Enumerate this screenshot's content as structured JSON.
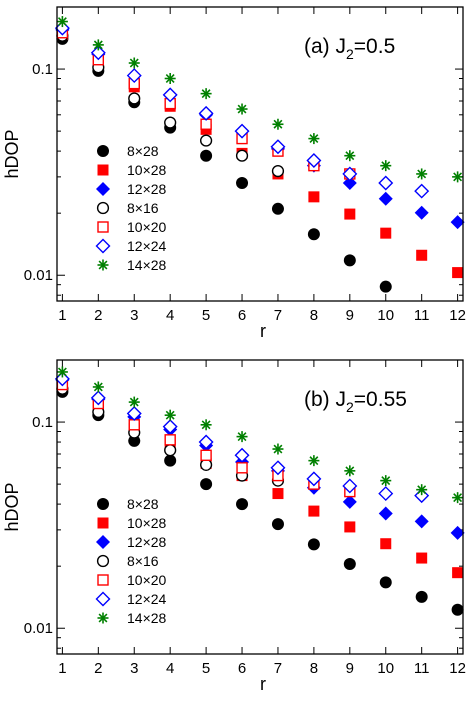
{
  "chart_data": [
    {
      "type": "scatter",
      "title_prefix": "(a) J",
      "title_sub": "2",
      "title_suffix": "=0.5",
      "xlabel": "r",
      "ylabel": "hDOP",
      "yscale": "log",
      "xlim": [
        0.85,
        12.15
      ],
      "ylim": [
        0.0075,
        0.2
      ],
      "xticks": [
        "1",
        "2",
        "3",
        "4",
        "5",
        "6",
        "7",
        "8",
        "9",
        "10",
        "11",
        "12"
      ],
      "yticks": [
        {
          "value": 0.01,
          "label": "0.01"
        },
        {
          "value": 0.1,
          "label": "0.1"
        }
      ],
      "legend_position": "left",
      "series": [
        {
          "name": "8×28",
          "marker": "circle-filled",
          "color": "#000000",
          "x": [
            1,
            2,
            3,
            4,
            5,
            6,
            7,
            8,
            9,
            10
          ],
          "y": [
            0.14,
            0.098,
            0.069,
            0.052,
            0.038,
            0.028,
            0.021,
            0.0158,
            0.0118,
            0.0088
          ]
        },
        {
          "name": "10×28",
          "marker": "square-filled",
          "color": "#ff0000",
          "x": [
            1,
            2,
            3,
            4,
            5,
            6,
            7,
            8,
            9,
            10,
            11,
            12
          ],
          "y": [
            0.147,
            0.108,
            0.082,
            0.066,
            0.051,
            0.039,
            0.031,
            0.024,
            0.0198,
            0.016,
            0.0125,
            0.0103
          ]
        },
        {
          "name": "12×28",
          "marker": "diamond-filled",
          "color": "#0000ff",
          "x": [
            1,
            2,
            3,
            4,
            5,
            6,
            7,
            8,
            9,
            10,
            11,
            12
          ],
          "y": [
            0.155,
            0.118,
            0.093,
            0.075,
            0.06,
            0.05,
            0.041,
            0.034,
            0.028,
            0.0235,
            0.0201,
            0.0181
          ]
        },
        {
          "name": "8×16",
          "marker": "circle-open",
          "color": "#000000",
          "x": [
            1,
            2,
            3,
            4,
            5,
            6,
            7
          ],
          "y": [
            0.145,
            0.102,
            0.072,
            0.055,
            0.045,
            0.038,
            0.032
          ]
        },
        {
          "name": "10×20",
          "marker": "square-open",
          "color": "#ff0000",
          "x": [
            1,
            2,
            3,
            4,
            5,
            6,
            7,
            8,
            9
          ],
          "y": [
            0.15,
            0.111,
            0.085,
            0.068,
            0.054,
            0.046,
            0.04,
            0.034,
            0.031
          ]
        },
        {
          "name": "12×24",
          "marker": "diamond-open",
          "color": "#0000ff",
          "x": [
            1,
            2,
            3,
            4,
            5,
            6,
            7,
            8,
            9,
            10,
            11
          ],
          "y": [
            0.158,
            0.12,
            0.093,
            0.075,
            0.061,
            0.05,
            0.042,
            0.036,
            0.031,
            0.028,
            0.0256
          ]
        },
        {
          "name": "14×28",
          "marker": "star",
          "color": "#008000",
          "x": [
            1,
            2,
            3,
            4,
            5,
            6,
            7,
            8,
            9,
            10,
            11,
            12
          ],
          "y": [
            0.17,
            0.131,
            0.107,
            0.09,
            0.076,
            0.064,
            0.054,
            0.046,
            0.038,
            0.034,
            0.031,
            0.03
          ]
        }
      ]
    },
    {
      "type": "scatter",
      "title_prefix": "(b) J",
      "title_sub": "2",
      "title_suffix": "=0.55",
      "xlabel": "r",
      "ylabel": "hDOP",
      "yscale": "log",
      "xlim": [
        0.85,
        12.15
      ],
      "ylim": [
        0.0075,
        0.2
      ],
      "xticks": [
        "1",
        "2",
        "3",
        "4",
        "5",
        "6",
        "7",
        "8",
        "9",
        "10",
        "11",
        "12"
      ],
      "yticks": [
        {
          "value": 0.01,
          "label": "0.01"
        },
        {
          "value": 0.1,
          "label": "0.1"
        }
      ],
      "legend_position": "left",
      "series": [
        {
          "name": "8×28",
          "marker": "circle-filled",
          "color": "#000000",
          "x": [
            1,
            2,
            3,
            4,
            5,
            6,
            7,
            8,
            9,
            10,
            11,
            12
          ],
          "y": [
            0.14,
            0.108,
            0.081,
            0.065,
            0.05,
            0.04,
            0.032,
            0.0255,
            0.0205,
            0.0167,
            0.0142,
            0.0123
          ]
        },
        {
          "name": "10×28",
          "marker": "square-filled",
          "color": "#ff0000",
          "x": [
            1,
            2,
            3,
            4,
            5,
            6,
            7,
            8,
            9,
            10,
            11,
            12
          ],
          "y": [
            0.15,
            0.12,
            0.093,
            0.077,
            0.063,
            0.055,
            0.045,
            0.037,
            0.031,
            0.0257,
            0.0219,
            0.0186
          ]
        },
        {
          "name": "12×28",
          "marker": "diamond-filled",
          "color": "#0000ff",
          "x": [
            1,
            2,
            3,
            4,
            5,
            6,
            7,
            8,
            9,
            10,
            11,
            12
          ],
          "y": [
            0.16,
            0.129,
            0.106,
            0.092,
            0.077,
            0.064,
            0.058,
            0.048,
            0.041,
            0.036,
            0.033,
            0.029
          ]
        },
        {
          "name": "8×16",
          "marker": "circle-open",
          "color": "#000000",
          "x": [
            1,
            2,
            3,
            4,
            5,
            6,
            7
          ],
          "y": [
            0.145,
            0.112,
            0.089,
            0.073,
            0.062,
            0.055,
            0.052
          ]
        },
        {
          "name": "10×20",
          "marker": "square-open",
          "color": "#ff0000",
          "x": [
            1,
            2,
            3,
            4,
            5,
            6,
            7,
            8,
            9
          ],
          "y": [
            0.152,
            0.123,
            0.097,
            0.082,
            0.069,
            0.06,
            0.055,
            0.05,
            0.046
          ]
        },
        {
          "name": "12×24",
          "marker": "diamond-open",
          "color": "#0000ff",
          "x": [
            1,
            2,
            3,
            4,
            5,
            6,
            7,
            8,
            9,
            10,
            11
          ],
          "y": [
            0.162,
            0.131,
            0.11,
            0.095,
            0.08,
            0.069,
            0.06,
            0.053,
            0.049,
            0.045,
            0.044
          ]
        },
        {
          "name": "14×28",
          "marker": "star",
          "color": "#008000",
          "x": [
            1,
            2,
            3,
            4,
            5,
            6,
            7,
            8,
            9,
            10,
            11,
            12
          ],
          "y": [
            0.175,
            0.148,
            0.125,
            0.108,
            0.097,
            0.085,
            0.074,
            0.065,
            0.058,
            0.052,
            0.047,
            0.043
          ]
        }
      ]
    }
  ]
}
